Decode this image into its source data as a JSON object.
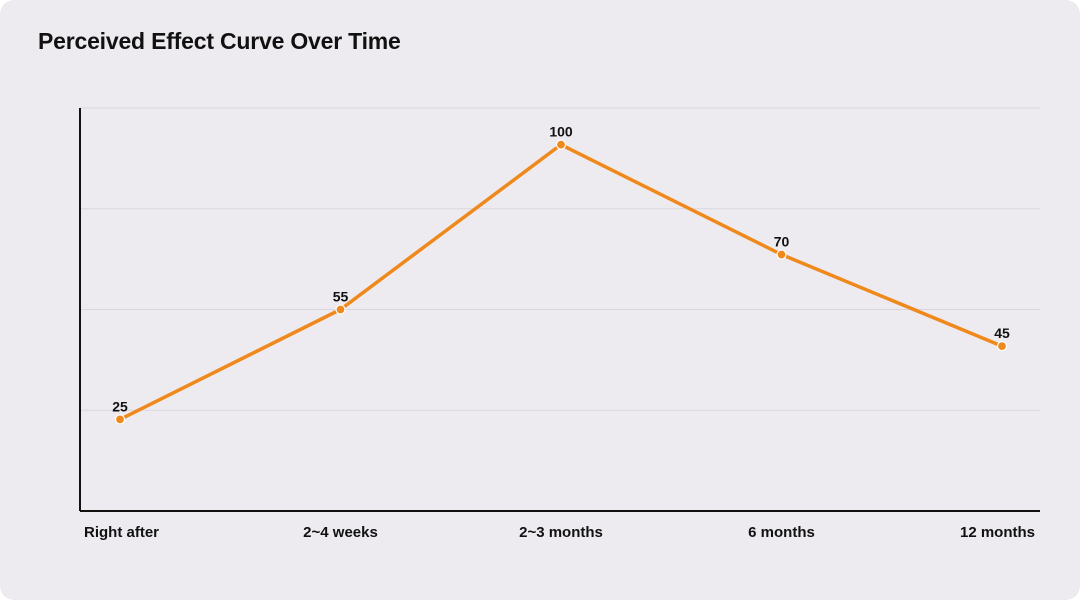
{
  "chart_data": {
    "type": "line",
    "title": "Perceived Effect Curve Over Time",
    "xlabel": "",
    "ylabel": "",
    "categories": [
      "Right after",
      "2~4 weeks",
      "2~3 months",
      "6 months",
      "12 months"
    ],
    "series": [
      {
        "values": [
          25,
          55,
          100,
          70,
          45
        ]
      }
    ],
    "ylim": [
      0,
      110
    ],
    "grid": true,
    "legend": "none",
    "colors": {
      "line": "#f0891c",
      "grid": "#d9d6de",
      "axis": "#111111"
    }
  }
}
